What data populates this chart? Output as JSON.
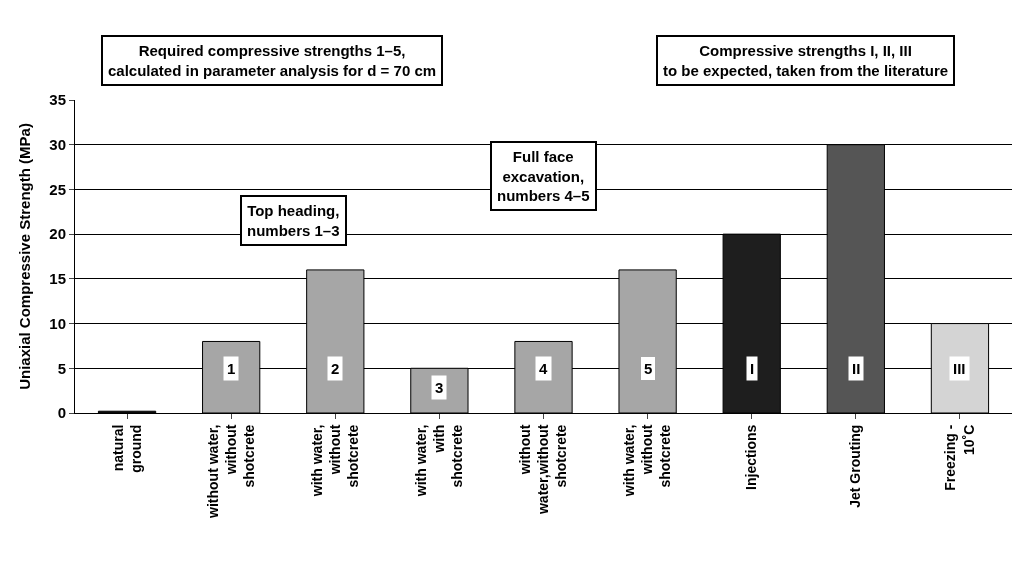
{
  "chart_data": {
    "type": "bar",
    "ylabel": "Uniaxial Compressive Strength (MPa)",
    "categories": [
      "natural\nground",
      "without water,\nwithout\nshotcrete",
      "with water,\nwithout\nshotcrete",
      "with water,\nwith\nshotcrete",
      "without\nwater,without\nshotcrete",
      "with water,\nwithout\nshotcrete",
      "Injections",
      "Jet Grouting",
      "Freezing -\n10˚C"
    ],
    "values": [
      0.2,
      8,
      16,
      5,
      8,
      16,
      20,
      30,
      10
    ],
    "colors": [
      "#111111",
      "#a6a6a6",
      "#a6a6a6",
      "#a6a6a6",
      "#a6a6a6",
      "#a6a6a6",
      "#1e1e1e",
      "#555555",
      "#d4d4d4"
    ],
    "ylim": [
      0,
      35
    ],
    "yticks": [
      0,
      5,
      10,
      15,
      20,
      25,
      30,
      35
    ],
    "grid": "y",
    "annotations": [
      "Required compressive strengths 1–5,\ncalculated in parameter analysis for d = 70 cm",
      "Compressive strengths I, II, III\nto be expected, taken from the literature",
      "Top heading,\nnumbers 1–3",
      "Full face\nexcavation,\nnumbers 4–5",
      {
        "text": "1",
        "x": "without water,\nwithout\nshotcrete",
        "y": 5
      },
      {
        "text": "2",
        "x": "with water,\nwithout\nshotcrete",
        "y": 5
      },
      {
        "text": "3",
        "x": "with water,\nwith\nshotcrete",
        "y": 2.8
      },
      {
        "text": "4",
        "x": "without\nwater,without\nshotcrete",
        "y": 5
      },
      "5",
      {
        "text": "I",
        "x": "Injections",
        "y": 5
      },
      {
        "text": "II",
        "x": "Jet Grouting",
        "y": 5
      },
      {
        "text": "III",
        "x": "Freezing -\n10˚C",
        "y": 5
      }
    ]
  }
}
